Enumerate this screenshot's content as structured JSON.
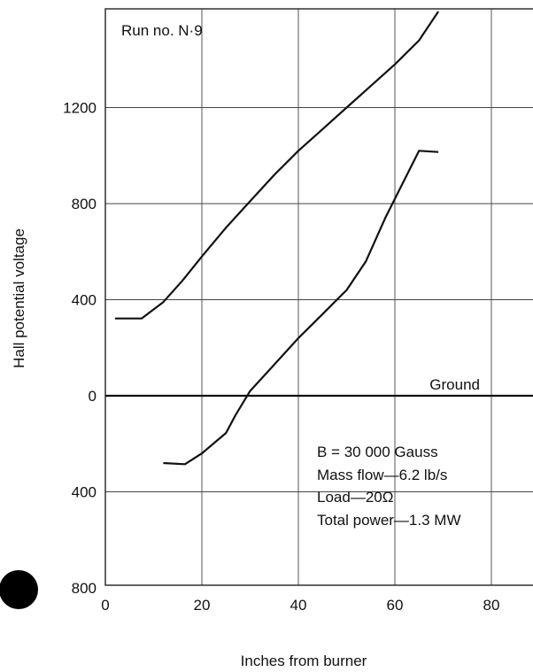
{
  "chart_data": {
    "type": "line",
    "title": "",
    "xlabel": "Inches from burner",
    "ylabel": "Hall potential voltage",
    "xlim": [
      0,
      89
    ],
    "ylim": [
      -800,
      1600
    ],
    "grid": true,
    "x_ticks": [
      {
        "value": 0,
        "label": "0"
      },
      {
        "value": 20,
        "label": "20"
      },
      {
        "value": 40,
        "label": "40"
      },
      {
        "value": 60,
        "label": "60"
      },
      {
        "value": 80,
        "label": "80"
      }
    ],
    "y_ticks": [
      {
        "value": 1200,
        "label": "1200"
      },
      {
        "value": 800,
        "label": "800"
      },
      {
        "value": 400,
        "label": "400"
      },
      {
        "value": 0,
        "label": "0"
      },
      {
        "value": -400,
        "label": "400"
      },
      {
        "value": -800,
        "label": "800"
      }
    ],
    "series": [
      {
        "x": [
          2,
          7.5,
          12,
          16,
          20,
          25,
          30,
          35,
          40,
          45,
          50,
          55,
          60,
          65,
          69
        ],
        "y": [
          322,
          322,
          390,
          480,
          580,
          700,
          810,
          920,
          1020,
          1110,
          1200,
          1290,
          1380,
          1480,
          1600
        ]
      },
      {
        "x": [
          12,
          16.5,
          20,
          25,
          27,
          30,
          35,
          40,
          45,
          50,
          54,
          58,
          62,
          65,
          69
        ],
        "y": [
          -280,
          -285,
          -240,
          -155,
          -80,
          20,
          130,
          240,
          340,
          440,
          560,
          740,
          900,
          1020,
          1015
        ]
      }
    ],
    "reference_lines": [
      {
        "y": 0,
        "label": "Ground"
      }
    ],
    "annotations": {
      "run": "Run no. N·9",
      "conditions": [
        "B = 30 000  Gauss",
        "Mass flow—6.2 lb/s",
        "Load—20Ω",
        "Total power—1.3 MW"
      ]
    }
  }
}
